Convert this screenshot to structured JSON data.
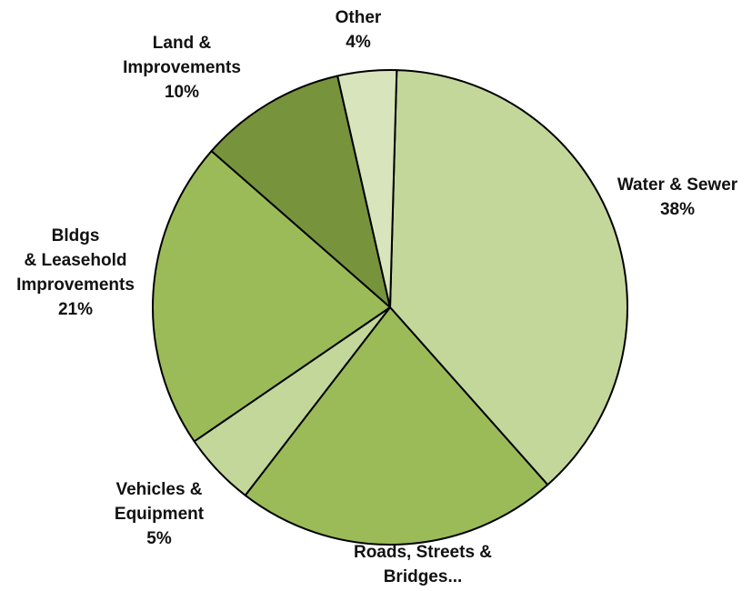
{
  "chart_data": {
    "type": "pie",
    "title": "",
    "start": "top, clockwise",
    "slices": [
      {
        "name_lines": [
          "Water & Sewer"
        ],
        "value_label": "38%",
        "value": 38,
        "color": "#c4d79b"
      },
      {
        "name_lines": [
          "Roads, Streets  &",
          "Bridges..."
        ],
        "value_label": "",
        "value": 22,
        "color": "#9bbb59"
      },
      {
        "name_lines": [
          "Vehicles &",
          "Equipment"
        ],
        "value_label": "5%",
        "value": 5,
        "color": "#c4d79b"
      },
      {
        "name_lines": [
          "Bldgs",
          "& Leasehold",
          "Improvements"
        ],
        "value_label": "21%",
        "value": 21,
        "color": "#9bbb59"
      },
      {
        "name_lines": [
          "Land &",
          "Improvements"
        ],
        "value_label": "10%",
        "value": 10,
        "color": "#77933c"
      },
      {
        "name_lines": [
          "Other"
        ],
        "value_label": "4%",
        "value": 4,
        "color": "#d8e4bc"
      }
    ],
    "legend": "none",
    "outline_color": "#000000"
  }
}
